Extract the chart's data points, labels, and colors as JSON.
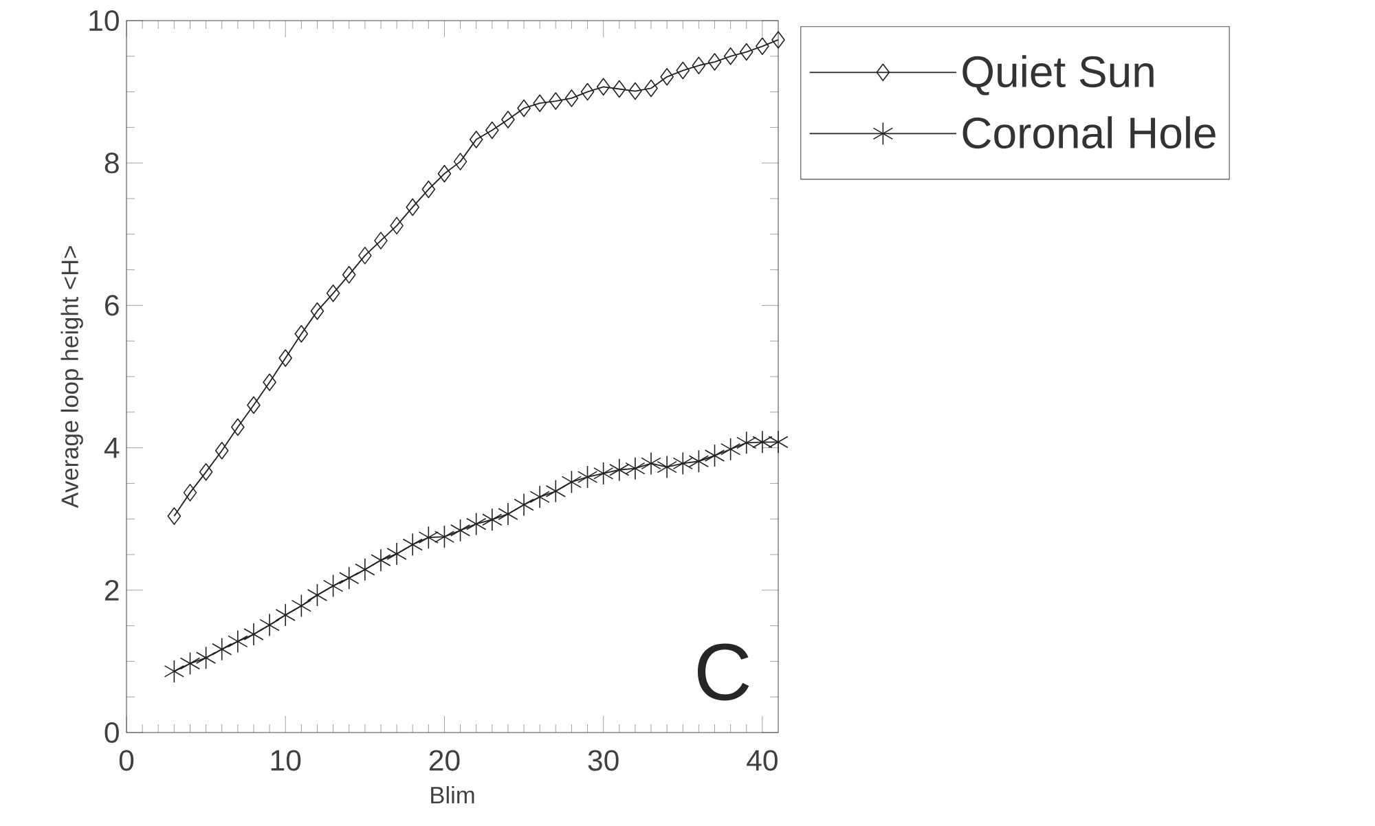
{
  "chart_data": {
    "type": "line",
    "xlabel": "Blim",
    "ylabel": "Average loop height <H>",
    "x": [
      3,
      4,
      5,
      6,
      7,
      8,
      9,
      10,
      11,
      12,
      13,
      14,
      15,
      16,
      17,
      18,
      19,
      20,
      21,
      22,
      23,
      24,
      25,
      26,
      27,
      28,
      29,
      30,
      31,
      32,
      33,
      34,
      35,
      36,
      37,
      38,
      39,
      40,
      41
    ],
    "series": [
      {
        "name": "Quiet Sun",
        "color": "#222222",
        "marker": "diamond",
        "values": [
          3.04,
          3.37,
          3.66,
          3.96,
          4.29,
          4.6,
          4.92,
          5.26,
          5.6,
          5.92,
          6.17,
          6.43,
          6.7,
          6.91,
          7.12,
          7.38,
          7.63,
          7.85,
          8.02,
          8.33,
          8.46,
          8.61,
          8.77,
          8.84,
          8.87,
          8.91,
          9.0,
          9.07,
          9.04,
          9.01,
          9.05,
          9.21,
          9.3,
          9.37,
          9.42,
          9.5,
          9.56,
          9.64,
          9.73
        ]
      },
      {
        "name": "Coronal Hole",
        "color": "#222222",
        "marker": "cross",
        "values": [
          0.86,
          0.97,
          1.05,
          1.17,
          1.28,
          1.38,
          1.51,
          1.65,
          1.78,
          1.93,
          2.06,
          2.17,
          2.29,
          2.42,
          2.51,
          2.64,
          2.74,
          2.75,
          2.84,
          2.93,
          2.99,
          3.07,
          3.2,
          3.31,
          3.39,
          3.52,
          3.59,
          3.64,
          3.69,
          3.71,
          3.78,
          3.73,
          3.78,
          3.81,
          3.89,
          3.98,
          4.07,
          4.08,
          4.08
        ]
      }
    ],
    "xlim": [
      0,
      41
    ],
    "ylim": [
      0,
      10
    ],
    "xticks": [
      0,
      10,
      20,
      30,
      40
    ],
    "yticks": [
      0,
      2,
      4,
      6,
      8,
      10
    ],
    "grid": false,
    "legend": "top right",
    "line_style": "solid",
    "annotations": [
      "C"
    ]
  }
}
